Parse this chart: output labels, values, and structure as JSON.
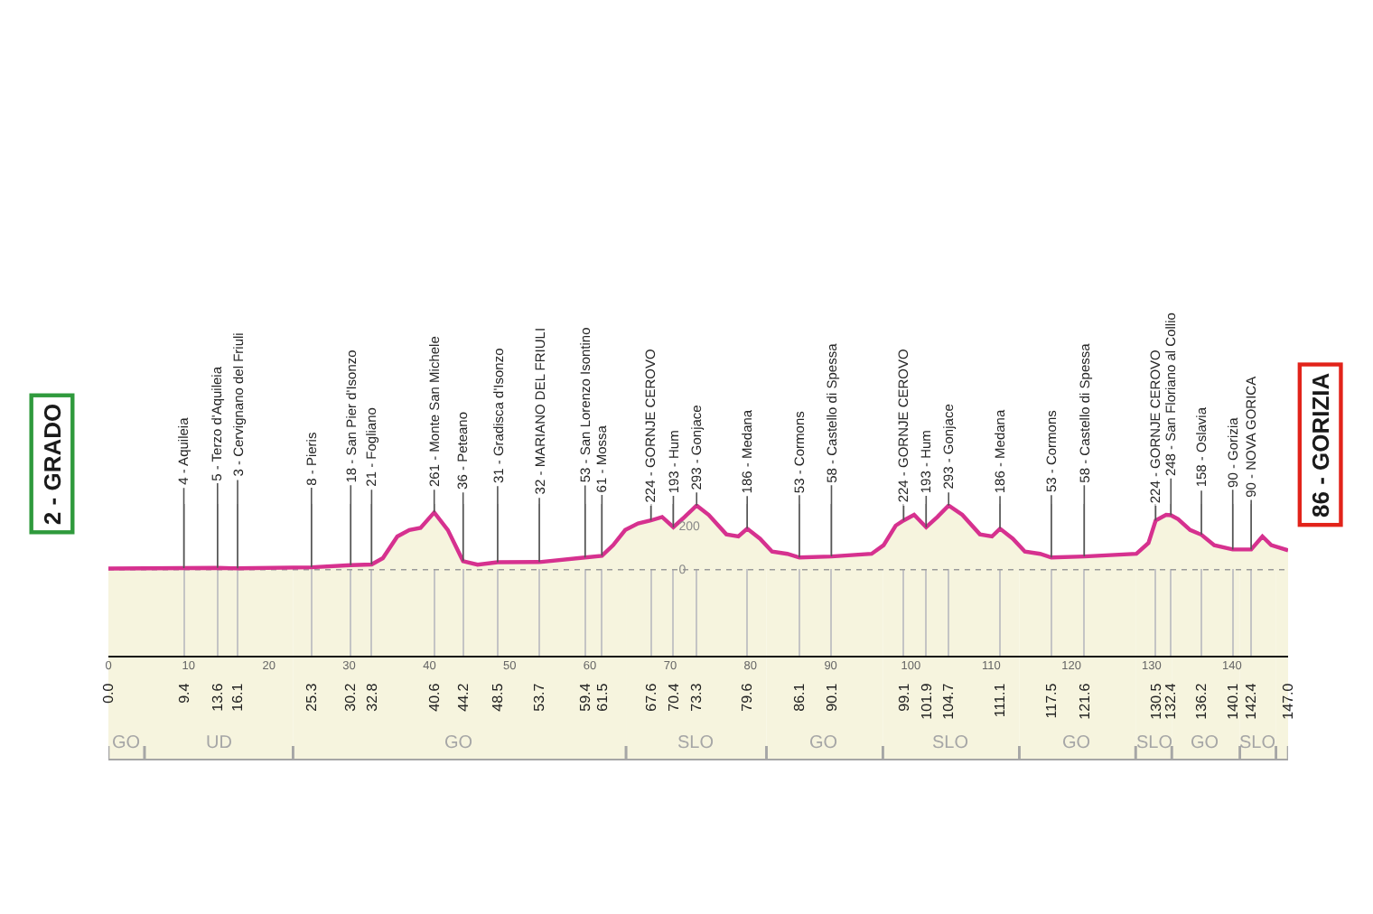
{
  "chart_data": {
    "type": "area",
    "color": "#f6f4de",
    "x": [
      0,
      9.4,
      13.6,
      16.1,
      25.3,
      30.2,
      32.8,
      34.2,
      36,
      37.5,
      38.9,
      40.6,
      42.3,
      44.2,
      46,
      48.5,
      53.7,
      59.4,
      61.5,
      62.9,
      64.4,
      66,
      67.6,
      69,
      70.4,
      71.8,
      73.3,
      74.8,
      77,
      78.5,
      79.6,
      81.2,
      82.7,
      84.6,
      86.1,
      90.1,
      95.1,
      96.6,
      98.1,
      99.1,
      100.4,
      101.9,
      103.3,
      104.7,
      106.4,
      108.6,
      110.1,
      111.1,
      112.7,
      114.2,
      116.1,
      117.5,
      121.6,
      128.1,
      129.6,
      130.5,
      131.8,
      132.4,
      133.3,
      134.8,
      136.2,
      137.8,
      140.1,
      142.4,
      143.8,
      144.9,
      147
    ],
    "values": [
      2,
      4,
      5,
      3,
      8,
      18,
      21,
      50,
      150,
      180,
      190,
      261,
      180,
      36,
      20,
      31,
      32,
      53,
      61,
      110,
      180,
      210,
      224,
      240,
      193,
      240,
      293,
      250,
      160,
      150,
      186,
      140,
      80,
      70,
      53,
      58,
      70,
      110,
      200,
      224,
      250,
      193,
      240,
      293,
      250,
      160,
      150,
      186,
      140,
      80,
      70,
      53,
      58,
      70,
      120,
      224,
      250,
      248,
      230,
      180,
      158,
      110,
      90,
      90,
      150,
      110,
      86
    ],
    "xlim": [
      0,
      147
    ],
    "xticks": [
      {
        "value": 0,
        "label": "0.0"
      },
      9.4,
      13.6,
      16.1,
      25.3,
      30.2,
      32.8,
      40.6,
      44.2,
      48.5,
      53.7,
      59.4,
      61.5,
      67.6,
      70.4,
      73.3,
      79.6,
      86.1,
      90.1,
      99.1,
      101.9,
      104.7,
      111.1,
      117.5,
      121.6,
      130.5,
      132.4,
      136.2,
      140.1,
      142.4,
      {
        "value": 147,
        "label": "147.0"
      }
    ],
    "x2lim": [
      0,
      147
    ],
    "x2ticks": [
      0,
      10,
      20,
      30,
      40,
      50,
      60,
      70,
      80,
      90,
      100,
      110,
      120,
      130,
      140
    ],
    "ylim": [
      -400,
      300
    ],
    "yticks": [
      0,
      200
    ],
    "grid": "x",
    "ref_lines": [
      {
        "axis": "y",
        "value": 0,
        "color": "#9a9a9a",
        "line_style": "dotted"
      }
    ],
    "bands": [
      {
        "axis": "x",
        "from": 0,
        "to": 4.5,
        "label": "GO",
        "color": "#f6f4de"
      },
      {
        "axis": "x",
        "from": 4.5,
        "to": 23,
        "label": "UD",
        "color": "#f6f4de"
      },
      {
        "axis": "x",
        "from": 23,
        "to": 64.5,
        "label": "GO",
        "color": "#f6f4de"
      },
      {
        "axis": "x",
        "from": 64.5,
        "to": 82,
        "label": "SLO",
        "color": "#f6f4de"
      },
      {
        "axis": "x",
        "from": 82,
        "to": 96.5,
        "label": "GO",
        "color": "#f6f4de"
      },
      {
        "axis": "x",
        "from": 96.5,
        "to": 113.5,
        "label": "SLO",
        "color": "#f6f4de"
      },
      {
        "axis": "x",
        "from": 113.5,
        "to": 128,
        "label": "GO",
        "color": "#f6f4de"
      },
      {
        "axis": "x",
        "from": 128,
        "to": 132.5,
        "label": "SLO",
        "color": "#f6f4de"
      },
      {
        "axis": "x",
        "from": 132.5,
        "to": 141,
        "label": "GO",
        "color": "#f6f4de"
      },
      {
        "axis": "x",
        "from": 141,
        "to": 145.5,
        "label": "SLO",
        "color": "#f6f4de"
      },
      {
        "axis": "x",
        "from": 145.5,
        "to": 147,
        "color": "#f6f4de"
      }
    ],
    "annotations": [
      {
        "text": "2 - GRADO",
        "x": 0,
        "y": 2
      },
      {
        "text": "4 - Aquileia",
        "x": 9.4,
        "y": 4
      },
      {
        "text": "5 - Terzo d'Aquileia",
        "x": 13.6,
        "y": 5
      },
      {
        "text": "3 - Cervignano del Friuli",
        "x": 16.1,
        "y": 3
      },
      {
        "text": "8 - Pieris",
        "x": 25.3,
        "y": 8
      },
      {
        "text": "18 - San Pier d'Isonzo",
        "x": 30.2,
        "y": 18
      },
      {
        "text": "21 - Fogliano",
        "x": 32.8,
        "y": 21
      },
      {
        "text": "261 - Monte San Michele",
        "x": 40.6,
        "y": 261
      },
      {
        "text": "36 - Peteano",
        "x": 44.2,
        "y": 36
      },
      {
        "text": "31 - Gradisca d'Isonzo",
        "x": 48.5,
        "y": 31
      },
      {
        "text": "32 - MARIANO DEL FRIULI",
        "x": 53.7,
        "y": 32
      },
      {
        "text": "53 - San Lorenzo Isontino",
        "x": 59.4,
        "y": 53
      },
      {
        "text": "61 - Mossa",
        "x": 61.5,
        "y": 61
      },
      {
        "text": "224 - GORNJE CEROVO",
        "x": 67.6,
        "y": 224
      },
      {
        "text": "193 - Hum",
        "x": 70.4,
        "y": 193
      },
      {
        "text": "293 - Gonjace",
        "x": 73.3,
        "y": 293
      },
      {
        "text": "186 - Medana",
        "x": 79.6,
        "y": 186
      },
      {
        "text": "53 - Cormons",
        "x": 86.1,
        "y": 53
      },
      {
        "text": "58 - Castello di Spessa",
        "x": 90.1,
        "y": 58
      },
      {
        "text": "224 - GORNJE CEROVO",
        "x": 99.1,
        "y": 224
      },
      {
        "text": "193 - Hum",
        "x": 101.9,
        "y": 193
      },
      {
        "text": "293 - Gonjace",
        "x": 104.7,
        "y": 293
      },
      {
        "text": "186 - Medana",
        "x": 111.1,
        "y": 186
      },
      {
        "text": "53 - Cormons",
        "x": 117.5,
        "y": 53
      },
      {
        "text": "58 - Castello di Spessa",
        "x": 121.6,
        "y": 58
      },
      {
        "text": "224 - GORNJE CEROVO",
        "x": 130.5,
        "y": 224
      },
      {
        "text": "248 - San Floriano al Collio",
        "x": 132.4,
        "y": 248
      },
      {
        "text": "158 - Oslavia",
        "x": 136.2,
        "y": 158
      },
      {
        "text": "90 - Gorizia",
        "x": 140.1,
        "y": 90
      },
      {
        "text": "90 - NOVA GORICA",
        "x": 142.4,
        "y": 90
      },
      {
        "text": "86 - GORIZIA",
        "x": 147,
        "y": 86
      }
    ]
  }
}
